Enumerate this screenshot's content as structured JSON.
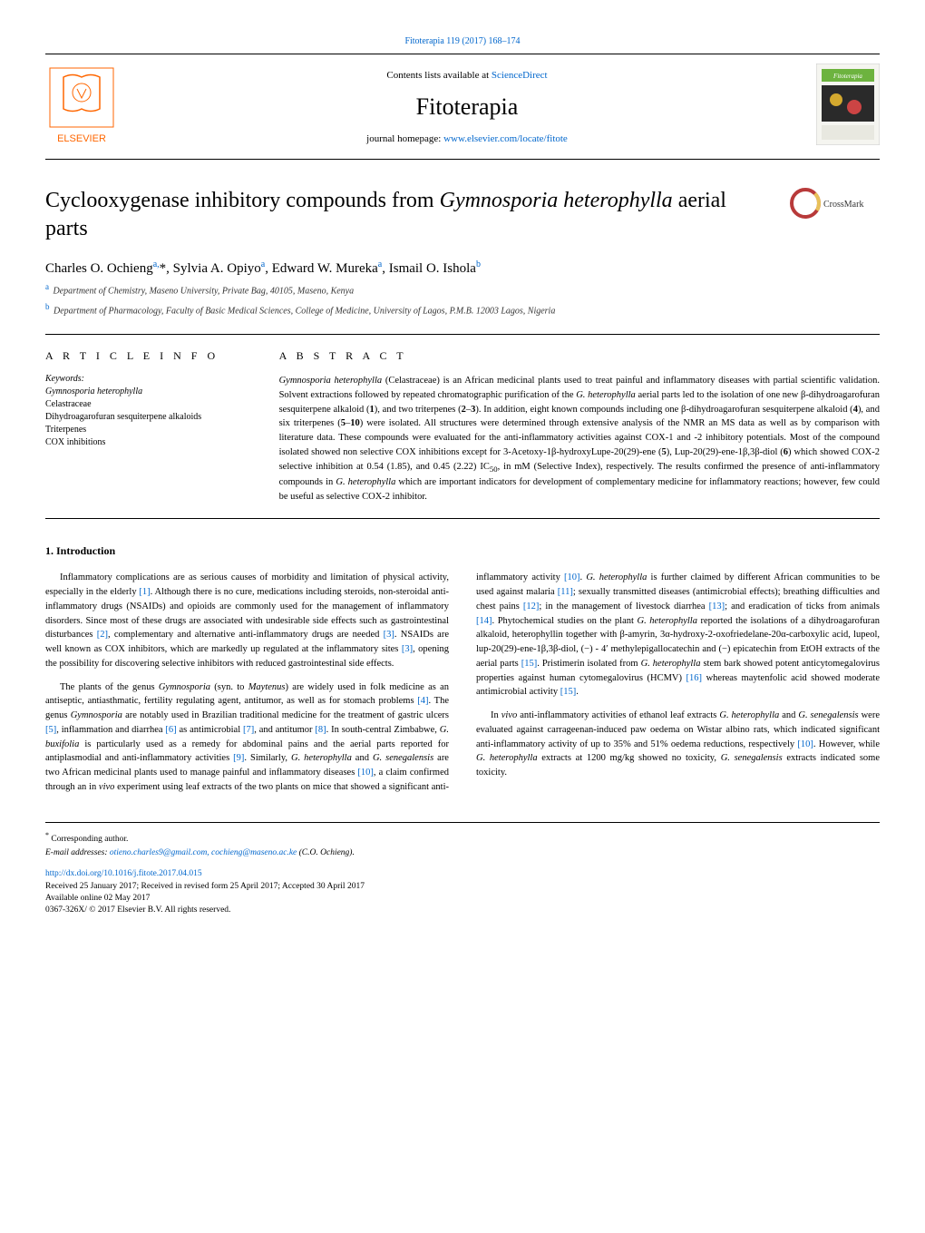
{
  "topLink": {
    "prefix": "Fitoterapia 119 (2017) 168–174",
    "url": ""
  },
  "header": {
    "contentsPrefix": "Contents lists available at ",
    "contentsLink": "ScienceDirect",
    "journalName": "Fitoterapia",
    "homepagePrefix": "journal homepage: ",
    "homepageLink": "www.elsevier.com/locate/fitote"
  },
  "elsevier": {
    "fill": "#ff6600",
    "textFill": "#000"
  },
  "journalCover": {
    "bg1": "#6db33f",
    "bg2": "#d4a92f",
    "textColor": "#fff"
  },
  "crossmark": {
    "ringColor": "#b83a3a",
    "text": "CrossMark",
    "textColor": "#333"
  },
  "article": {
    "title": "Cyclooxygenase inhibitory compounds from <em>Gymnosporia heterophylla</em> aerial parts",
    "authors": "Charles O. Ochieng<sup>a,</sup>*, Sylvia A. Opiyo<sup>a</sup>, Edward W. Mureka<sup>a</sup>, Ismail O. Ishola<sup>b</sup>",
    "affiliations": [
      {
        "sup": "a",
        "text": "Department of Chemistry, Maseno University, Private Bag, 40105, Maseno, Kenya"
      },
      {
        "sup": "b",
        "text": "Department of Pharmacology, Faculty of Basic Medical Sciences, College of Medicine, University of Lagos, P.M.B. 12003 Lagos, Nigeria"
      }
    ]
  },
  "info": {
    "heading": "A R T I C L E  I N F O",
    "keywordsLabel": "Keywords:",
    "keywords": [
      "Gymnosporia heterophylla",
      "Celastraceae",
      "Dihydroagarofuran sesquiterpene alkaloids",
      "Triterpenes",
      "COX inhibitions"
    ]
  },
  "abstract": {
    "heading": "A B S T R A C T",
    "text": "<em>Gymnosporia heterophylla</em> (Celastraceae) is an African medicinal plants used to treat painful and inflammatory diseases with partial scientific validation. Solvent extractions followed by repeated chromatographic purification of the <em>G. heterophylla</em> aerial parts led to the isolation of one new β-dihydroagarofuran sesquiterpene alkaloid (<b>1</b>), and two triterpenes (<b>2</b>–<b>3</b>). In addition, eight known compounds including one β-dihydroagarofuran sesquiterpene alkaloid (<b>4</b>), and six triterpenes (<b>5</b>–<b>10</b>) were isolated. All structures were determined through extensive analysis of the NMR an MS data as well as by comparison with literature data. These compounds were evaluated for the anti-inflammatory activities against COX-1 and -2 inhibitory potentials. Most of the compound isolated showed non selective COX inhibitions except for 3-Acetoxy-1β-hydroxyLupe-20(29)-ene (<b>5</b>), Lup-20(29)-ene-1β,3β-diol (<b>6</b>) which showed COX-2 selective inhibition at 0.54 (1.85), and 0.45 (2.22) IC<sub>50</sub>, in mM (Selective Index), respectively. The results confirmed the presence of anti-inflammatory compounds in <em>G. heterophylla</em> which are important indicators for development of complementary medicine for inflammatory reactions; however, few could be useful as selective COX-2 inhibitor."
  },
  "body": {
    "heading": "1. Introduction",
    "paragraphs": [
      "Inflammatory complications are as serious causes of morbidity and limitation of physical activity, especially in the elderly <span class='ref'>[1]</span>. Although there is no cure, medications including steroids, non-steroidal anti-inflammatory drugs (NSAIDs) and opioids are commonly used for the management of inflammatory disorders. Since most of these drugs are associated with undesirable side effects such as gastrointestinal disturbances <span class='ref'>[2]</span>, complementary and alternative anti-inflammatory drugs are needed <span class='ref'>[3]</span>. NSAIDs are well known as COX inhibitors, which are markedly up regulated at the inflammatory sites <span class='ref'>[3]</span>, opening the possibility for discovering selective inhibitors with reduced gastrointestinal side effects.",
      "The plants of the genus <em>Gymnosporia</em> (syn. to <em>Maytenus</em>) are widely used in folk medicine as an antiseptic, antiasthmatic, fertility regulating agent, antitumor, as well as for stomach problems <span class='ref'>[4]</span>. The genus <em>Gymnosporia</em> are notably used in Brazilian traditional medicine for the treatment of gastric ulcers <span class='ref'>[5]</span>, inflammation and diarrhea <span class='ref'>[6]</span> as antimicrobial <span class='ref'>[7]</span>, and antitumor <span class='ref'>[8]</span>. In south-central Zimbabwe, <em>G. buxifolia</em> is particularly used as a remedy for abdominal pains and the aerial parts reported for antiplasmodial and anti-inflammatory activities <span class='ref'>[9]</span>. Similarly, <em>G. heterophylla</em> and <em>G. senegalensis</em> are two African medicinal plants used to manage painful and inflammatory diseases <span class='ref'>[10]</span>, a claim confirmed through an in <em>vivo</em> experiment using leaf extracts of the two plants on mice that showed a significant anti-inflammatory activity <span class='ref'>[10]</span>. <em>G. heterophylla</em> is further claimed by different African communities to be used against malaria <span class='ref'>[11]</span>; sexually transmitted diseases (antimicrobial effects); breathing difficulties and chest pains <span class='ref'>[12]</span>; in the management of livestock diarrhea <span class='ref'>[13]</span>; and eradication of ticks from animals <span class='ref'>[14]</span>. Phytochemical studies on the plant <em>G. heterophylla</em> reported the isolations of a dihydroagarofuran alkaloid, heterophyllin together with β-amyrin, 3α-hydroxy-2-oxofriedelane-20α-carboxylic acid, lupeol, lup-20(29)-ene-1β,3β-diol, (−) - 4′ methylepigallocatechin and (−) epicatechin from EtOH extracts of the aerial parts <span class='ref'>[15]</span>. Pristimerin isolated from <em>G. heterophylla</em> stem bark showed potent anticytomegalovirus properties against human cytomegalovirus (HCMV) <span class='ref'>[16]</span> whereas maytenfolic acid showed moderate antimicrobial activity <span class='ref'>[15]</span>.",
      "In <em>vivo</em> anti-inflammatory activities of ethanol leaf extracts <em>G. heterophylla</em> and <em>G. senegalensis</em> were evaluated against carrageenan-induced paw oedema on Wistar albino rats, which indicated significant anti-inflammatory activity of up to 35% and 51% oedema reductions, respectively <span class='ref'>[10]</span>. However, while <em>G. heterophylla</em> extracts at 1200 mg/kg showed no toxicity, <em>G. senegalensis</em> extracts indicated some toxicity."
    ]
  },
  "footer": {
    "corr": "Corresponding author.",
    "emailPrefix": "E-mail addresses: ",
    "emails": "otieno.charles9@gmail.com, cochieng@maseno.ac.ke",
    "emailSuffix": " (C.O. Ochieng).",
    "doi": "http://dx.doi.org/10.1016/j.fitote.2017.04.015",
    "received": "Received 25 January 2017; Received in revised form 25 April 2017; Accepted 30 April 2017",
    "online": "Available online 02 May 2017",
    "copyright": "0367-326X/ © 2017 Elsevier B.V. All rights reserved."
  }
}
